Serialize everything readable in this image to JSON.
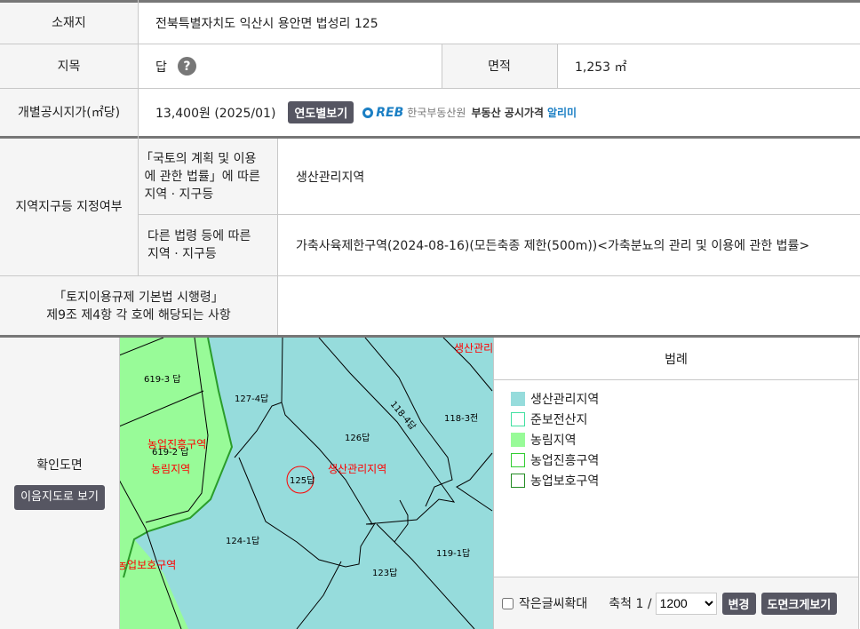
{
  "location": {
    "label": "소재지",
    "value": "전북특별자치도 익산시 용안면 법성리 125"
  },
  "land_category": {
    "label": "지목",
    "value": "답",
    "help_icon": "question-icon",
    "help_glyph": "?"
  },
  "area": {
    "label": "면적",
    "value": "1,253 ㎡"
  },
  "price": {
    "label": "개별공시지가(㎡당)",
    "value": "13,400원 (2025/01)",
    "yearly_button": "연도별보기",
    "reb_logo": "REB",
    "reb_org": "한국부동산원",
    "reb_service": "부동산 공시가격",
    "reb_alimi": "알리미"
  },
  "zoning": {
    "label": "지역지구등 지정여부",
    "national_law_label": "「국토의 계획 및 이용\n 에 관한 법률」에 따른\n 지역 · 지구등",
    "national_law_value": "생산관리지역",
    "other_law_label": "다른 법령 등에 따른\n지역 · 지구등",
    "other_law_value": "가축사육제한구역(2024-08-16)(모든축종 제한(500m))<가축분뇨의 관리 및 이용에 관한 법률>"
  },
  "enforcement": {
    "label": "「토지이용규제 기본법 시행령」\n제9조 제4항 각 호에 해당되는 사항",
    "value": ""
  },
  "map": {
    "label": "확인도면",
    "view_button": "이음지도로 보기",
    "parcels": [
      "619-3 답",
      "127-4답",
      "118-4답",
      "118-3전",
      "126답",
      "619-2 답",
      "125답",
      "124-1답",
      "119-1답",
      "123답"
    ],
    "zones": [
      "농업진흥구역",
      "농림지역",
      "생산관리지역",
      "농업보호구역",
      "생산관리"
    ],
    "colors": {
      "production_mgmt": "#96dcdc",
      "agri_forest": "#98fb98"
    }
  },
  "legend": {
    "title": "범례",
    "items": [
      {
        "label": "생산관리지역",
        "fill": "#96dcdc",
        "border": "#96dcdc"
      },
      {
        "label": "준보전산지",
        "fill": "#ffffff",
        "border": "#40e0a0"
      },
      {
        "label": "농림지역",
        "fill": "#98fb98",
        "border": "#98fb98"
      },
      {
        "label": "농업진흥구역",
        "fill": "#ffffff",
        "border": "#32cd32"
      },
      {
        "label": "농업보호구역",
        "fill": "#ffffff",
        "border": "#228b22"
      }
    ]
  },
  "controls": {
    "small_text_label": "작은글씨확대",
    "small_text_checked": false,
    "scale_label": "축척 1 /",
    "scale_value": "1200",
    "change_button": "변경",
    "enlarge_button": "도면크게보기"
  }
}
